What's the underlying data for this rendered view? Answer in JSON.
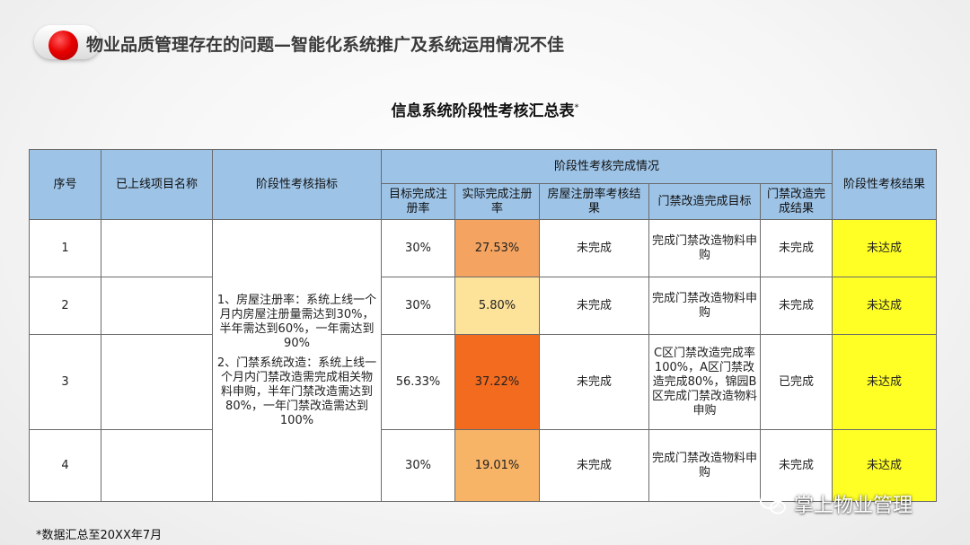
{
  "header": {
    "title": "物业品质管理存在的问题—智能化系统推广及系统运用情况不佳"
  },
  "table": {
    "title": "信息系统阶段性考核汇总表",
    "title_mark": "*",
    "headers": {
      "seq": "序号",
      "project": "已上线项目名称",
      "indicator": "阶段性考核指标",
      "group": "阶段性考核完成情况",
      "target_rate": "目标完成注册率",
      "actual_rate": "实际完成注册率",
      "reg_result": "房屋注册率考核结果",
      "door_target": "门禁改造完成目标",
      "door_result": "门禁改造完成结果",
      "final": "阶段性考核结果"
    },
    "indicator_text": {
      "part1": "1、房屋注册率：系统上线一个月内房屋注册量需达到30%，半年需达到60%，一年需达到90%",
      "part2": "2、门禁系统改造：系统上线一个月内门禁改造需完成相关物料申购，半年门禁改造需达到80%，一年门禁改造需达到100%"
    },
    "rows": [
      {
        "seq": "1",
        "project": "",
        "target_rate": "30%",
        "actual_rate": "27.53%",
        "reg_result": "未完成",
        "door_target": "完成门禁改造物料申购",
        "door_result": "未完成",
        "final": "未达成"
      },
      {
        "seq": "2",
        "project": "",
        "target_rate": "30%",
        "actual_rate": "5.80%",
        "reg_result": "未完成",
        "door_target": "完成门禁改造物料申购",
        "door_result": "未完成",
        "final": "未达成"
      },
      {
        "seq": "3",
        "project": "",
        "target_rate": "56.33%",
        "actual_rate": "37.22%",
        "reg_result": "未完成",
        "door_target": "C区门禁改造完成率100%，A区门禁改造完成80%，锦园B区完成门禁改造物料申购",
        "door_result": "已完成",
        "final": "未达成"
      },
      {
        "seq": "4",
        "project": "",
        "target_rate": "30%",
        "actual_rate": "19.01%",
        "reg_result": "未完成",
        "door_target": "完成门禁改造物料申购",
        "door_result": "未完成",
        "final": "未达成"
      }
    ]
  },
  "footnote": "*数据汇总至20XX年7月",
  "watermark": {
    "text": "掌上物业管理",
    "icon": "wechat-icon"
  },
  "colors": {
    "header_fill": "#9dc3e6",
    "actual_rate_row1": "#f4a460",
    "actual_rate_row2": "#fde29a",
    "actual_rate_row3": "#f26b1f",
    "actual_rate_row4": "#f7b366",
    "final_result": "#ffff26",
    "bullet": "#e80000"
  }
}
